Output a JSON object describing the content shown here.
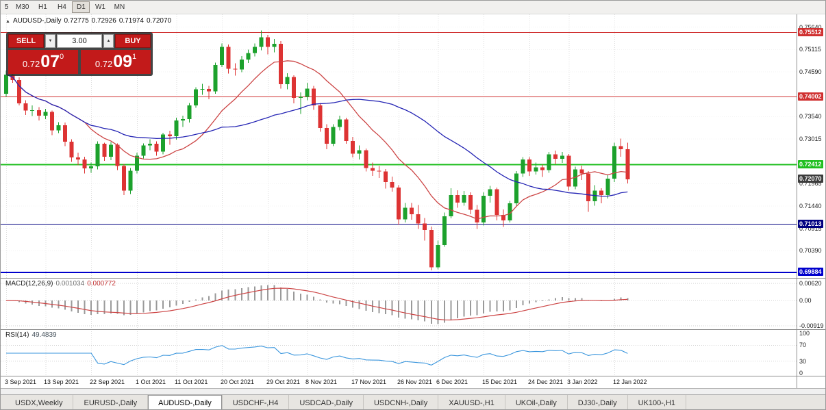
{
  "toolbar": {
    "timeframes": [
      "5",
      "M30",
      "H1",
      "H4",
      "D1",
      "W1",
      "MN"
    ],
    "active": "D1"
  },
  "icons": {
    "title_marker": "▲",
    "spinner_down": "▼",
    "spinner_up": "▲"
  },
  "chart_header": {
    "symbol": "AUDUSD-,Daily",
    "open": "0.72775",
    "high": "0.72926",
    "low": "0.71974",
    "close": "0.72070"
  },
  "trade_panel": {
    "sell_label": "SELL",
    "buy_label": "BUY",
    "volume": "3.00",
    "sell_price": {
      "base": "0.72",
      "big": "07",
      "sup": "0"
    },
    "buy_price": {
      "base": "0.72",
      "big": "09",
      "sup": "1"
    }
  },
  "price_axis": {
    "ticks": [
      "0.75640",
      "0.75115",
      "0.74590",
      "0.73540",
      "0.73015",
      "0.71965",
      "0.71440",
      "0.70915",
      "0.70390"
    ],
    "levels": [
      {
        "value": "0.75512",
        "color": "#d03030",
        "line": true,
        "width": 1
      },
      {
        "value": "0.74002",
        "color": "#d03030",
        "line": true,
        "width": 1
      },
      {
        "value": "0.72412",
        "color": "#1fbf1f",
        "line": true,
        "width": 2
      },
      {
        "value": "0.72070",
        "color": "#3c3c3c",
        "line": false
      },
      {
        "value": "0.71013",
        "color": "#000080",
        "line": true,
        "width": 1
      },
      {
        "value": "0.69884",
        "color": "#0000cd",
        "line": true,
        "width": 2
      }
    ]
  },
  "macd_panel": {
    "name": "MACD(12,26,9)",
    "value_main": "0.001034",
    "value_signal": "0.000772",
    "axis": [
      "0.00620",
      "0.00",
      "-0.00919"
    ]
  },
  "rsi_panel": {
    "name": "RSI(14)",
    "value": "49.4839",
    "axis": [
      "100",
      "70",
      "30",
      "0"
    ]
  },
  "date_axis": {
    "labels": [
      "3 Sep 2021",
      "13 Sep 2021",
      "22 Sep 2021",
      "1 Oct 2021",
      "11 Oct 2021",
      "20 Oct 2021",
      "29 Oct 2021",
      "8 Nov 2021",
      "17 Nov 2021",
      "26 Nov 2021",
      "6 Dec 2021",
      "15 Dec 2021",
      "24 Dec 2021",
      "3 Jan 2022",
      "12 Jan 2022"
    ],
    "indices": [
      0,
      6,
      13,
      20,
      26,
      33,
      40,
      46,
      53,
      60,
      66,
      73,
      80,
      86,
      93
    ]
  },
  "tabs": {
    "items": [
      "USDX,Weekly",
      "EURUSD-,Daily",
      "AUDUSD-,Daily",
      "USDCHF-,H4",
      "USDCAD-,Daily",
      "USDCNH-,Daily",
      "XAUUSD-,H1",
      "UKOil-,Daily",
      "DJ30-,Daily",
      "UK100-,H1"
    ],
    "active": "AUDUSD-,Daily"
  },
  "colors": {
    "up": "#1ca12c",
    "down": "#dd3333",
    "ma_fast": "#cc4444",
    "ma_slow": "#2424b4",
    "macd_hist": "#9a9a9a",
    "macd_signal": "#cc4444",
    "rsi_line": "#3a96dd",
    "grid": "#dedede"
  },
  "chart_data": {
    "type": "candlestick",
    "symbol": "AUDUSD",
    "timeframe": "Daily",
    "title": "AUDUSD-,Daily 0.72775 0.72926 0.71974 0.72070",
    "ohlc_current": {
      "open": 0.72775,
      "high": 0.72926,
      "low": 0.71974,
      "close": 0.7207
    },
    "y_range": [
      0.698,
      0.7578
    ],
    "levels": [
      0.75512,
      0.74002,
      0.72412,
      0.7207,
      0.71013,
      0.69884
    ],
    "indicators": {
      "ma_fast_period": 13,
      "ma_slow_period": 34,
      "macd": [
        12,
        26,
        9
      ],
      "rsi_period": 14
    },
    "candles": [
      [
        0.7408,
        0.7462,
        0.74,
        0.7453
      ],
      [
        0.7453,
        0.746,
        0.7433,
        0.744
      ],
      [
        0.744,
        0.7446,
        0.738,
        0.7385
      ],
      [
        0.7385,
        0.7392,
        0.7358,
        0.7368
      ],
      [
        0.7368,
        0.738,
        0.7355,
        0.7369
      ],
      [
        0.7369,
        0.7376,
        0.7345,
        0.7356
      ],
      [
        0.7356,
        0.7372,
        0.7348,
        0.7365
      ],
      [
        0.7365,
        0.7368,
        0.731,
        0.7322
      ],
      [
        0.7322,
        0.7341,
        0.7315,
        0.7334
      ],
      [
        0.7334,
        0.734,
        0.7285,
        0.7295
      ],
      [
        0.7295,
        0.7301,
        0.7248,
        0.7258
      ],
      [
        0.7258,
        0.7269,
        0.724,
        0.7253
      ],
      [
        0.7253,
        0.726,
        0.722,
        0.7232
      ],
      [
        0.7232,
        0.7246,
        0.7222,
        0.7237
      ],
      [
        0.7237,
        0.7296,
        0.723,
        0.729
      ],
      [
        0.729,
        0.7293,
        0.725,
        0.726
      ],
      [
        0.726,
        0.7294,
        0.7252,
        0.7288
      ],
      [
        0.7288,
        0.7291,
        0.7228,
        0.7238
      ],
      [
        0.7238,
        0.7243,
        0.717,
        0.718
      ],
      [
        0.718,
        0.7233,
        0.7172,
        0.7227
      ],
      [
        0.7227,
        0.7269,
        0.722,
        0.7262
      ],
      [
        0.7262,
        0.7291,
        0.7256,
        0.7286
      ],
      [
        0.7286,
        0.7301,
        0.7275,
        0.729
      ],
      [
        0.729,
        0.7296,
        0.7262,
        0.7272
      ],
      [
        0.7272,
        0.7316,
        0.7265,
        0.7312
      ],
      [
        0.7312,
        0.7321,
        0.7288,
        0.7308
      ],
      [
        0.7308,
        0.7351,
        0.73,
        0.7345
      ],
      [
        0.7345,
        0.7356,
        0.733,
        0.7348
      ],
      [
        0.7348,
        0.7386,
        0.734,
        0.738
      ],
      [
        0.738,
        0.7423,
        0.7375,
        0.7418
      ],
      [
        0.7418,
        0.7431,
        0.7405,
        0.7419
      ],
      [
        0.7419,
        0.7426,
        0.7395,
        0.7413
      ],
      [
        0.7413,
        0.7481,
        0.7408,
        0.7475
      ],
      [
        0.7475,
        0.7526,
        0.747,
        0.7518
      ],
      [
        0.7518,
        0.7523,
        0.7455,
        0.7466
      ],
      [
        0.7466,
        0.7479,
        0.745,
        0.7465
      ],
      [
        0.7465,
        0.7496,
        0.7458,
        0.7488
      ],
      [
        0.7488,
        0.7511,
        0.748,
        0.7503
      ],
      [
        0.7503,
        0.7526,
        0.7495,
        0.7518
      ],
      [
        0.7518,
        0.7556,
        0.751,
        0.754
      ],
      [
        0.754,
        0.7546,
        0.75,
        0.7518
      ],
      [
        0.7518,
        0.7536,
        0.7505,
        0.7525
      ],
      [
        0.7525,
        0.7531,
        0.742,
        0.743
      ],
      [
        0.743,
        0.7456,
        0.7418,
        0.7447
      ],
      [
        0.7447,
        0.7451,
        0.7385,
        0.7398
      ],
      [
        0.7398,
        0.7411,
        0.736,
        0.74
      ],
      [
        0.74,
        0.7433,
        0.7392,
        0.742
      ],
      [
        0.742,
        0.7426,
        0.737,
        0.738
      ],
      [
        0.738,
        0.7386,
        0.7318,
        0.7327
      ],
      [
        0.7327,
        0.7336,
        0.7277,
        0.729
      ],
      [
        0.729,
        0.7336,
        0.7285,
        0.733
      ],
      [
        0.733,
        0.7356,
        0.7322,
        0.7347
      ],
      [
        0.7347,
        0.7351,
        0.729,
        0.7297
      ],
      [
        0.7297,
        0.7306,
        0.7258,
        0.7267
      ],
      [
        0.7267,
        0.7286,
        0.7253,
        0.7275
      ],
      [
        0.7275,
        0.7279,
        0.7225,
        0.7233
      ],
      [
        0.7233,
        0.7246,
        0.7215,
        0.7227
      ],
      [
        0.7227,
        0.7238,
        0.721,
        0.7225
      ],
      [
        0.7225,
        0.7231,
        0.7185,
        0.72
      ],
      [
        0.72,
        0.7213,
        0.7178,
        0.7187
      ],
      [
        0.7187,
        0.7193,
        0.71,
        0.7113
      ],
      [
        0.7113,
        0.7151,
        0.7105,
        0.714
      ],
      [
        0.714,
        0.7151,
        0.7112,
        0.7125
      ],
      [
        0.7125,
        0.7146,
        0.709,
        0.7103
      ],
      [
        0.7103,
        0.7116,
        0.7063,
        0.7088
      ],
      [
        0.7088,
        0.7096,
        0.6993,
        0.7
      ],
      [
        0.7,
        0.7063,
        0.6995,
        0.7052
      ],
      [
        0.7052,
        0.7129,
        0.7048,
        0.712
      ],
      [
        0.712,
        0.7186,
        0.7115,
        0.717
      ],
      [
        0.717,
        0.7181,
        0.714,
        0.7152
      ],
      [
        0.7152,
        0.7179,
        0.7145,
        0.717
      ],
      [
        0.717,
        0.7176,
        0.7125,
        0.7135
      ],
      [
        0.7135,
        0.7146,
        0.709,
        0.7105
      ],
      [
        0.7105,
        0.7176,
        0.7098,
        0.7168
      ],
      [
        0.7168,
        0.7191,
        0.7152,
        0.7183
      ],
      [
        0.7183,
        0.7187,
        0.711,
        0.7123
      ],
      [
        0.7123,
        0.7136,
        0.7095,
        0.711
      ],
      [
        0.711,
        0.7156,
        0.7105,
        0.715
      ],
      [
        0.715,
        0.7226,
        0.7145,
        0.722
      ],
      [
        0.722,
        0.7259,
        0.7212,
        0.7253
      ],
      [
        0.7253,
        0.7259,
        0.7215,
        0.7225
      ],
      [
        0.7225,
        0.7246,
        0.7218,
        0.7235
      ],
      [
        0.7235,
        0.7241,
        0.7212,
        0.7228
      ],
      [
        0.7228,
        0.7271,
        0.7222,
        0.7265
      ],
      [
        0.7265,
        0.7274,
        0.7242,
        0.7255
      ],
      [
        0.7255,
        0.7271,
        0.7245,
        0.7262
      ],
      [
        0.7262,
        0.7266,
        0.718,
        0.719
      ],
      [
        0.719,
        0.7236,
        0.7183,
        0.723
      ],
      [
        0.723,
        0.7239,
        0.7205,
        0.722
      ],
      [
        0.722,
        0.7226,
        0.713,
        0.7155
      ],
      [
        0.7155,
        0.7193,
        0.7145,
        0.718
      ],
      [
        0.718,
        0.7186,
        0.715,
        0.717
      ],
      [
        0.717,
        0.7216,
        0.7162,
        0.7208
      ],
      [
        0.7208,
        0.7293,
        0.72,
        0.7285
      ],
      [
        0.7285,
        0.7302,
        0.726,
        0.72775
      ],
      [
        0.72775,
        0.72926,
        0.71974,
        0.7207
      ]
    ]
  }
}
